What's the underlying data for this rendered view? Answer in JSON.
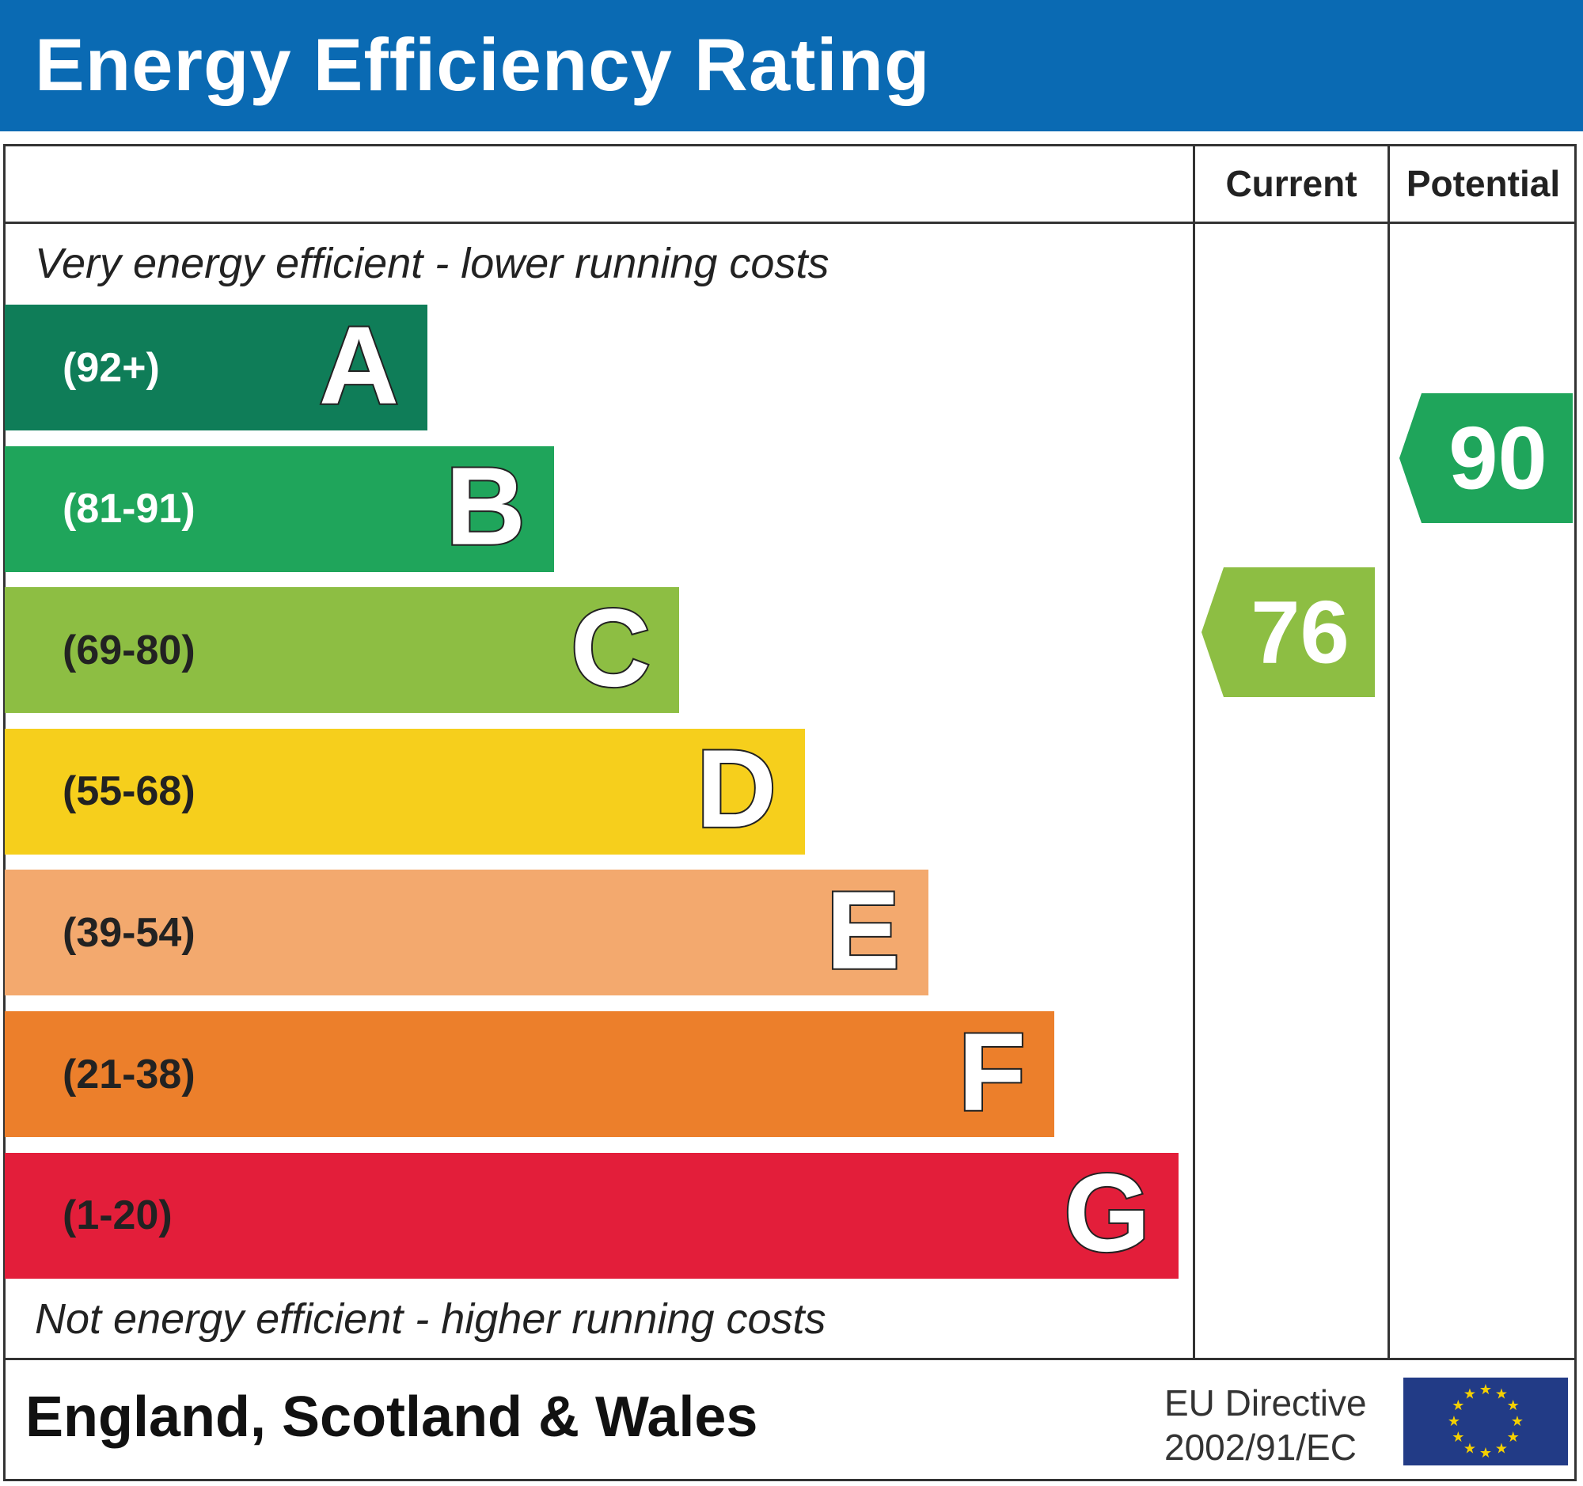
{
  "title": "Energy Efficiency Rating",
  "columns": {
    "current": "Current",
    "potential": "Potential"
  },
  "top_note": "Very energy efficient - lower running costs",
  "bottom_note": "Not energy efficient - higher running costs",
  "bands": [
    {
      "letter": "A",
      "range": "(92+)",
      "color": "#0f7d58",
      "text_color": "#ffffff"
    },
    {
      "letter": "B",
      "range": "(81-91)",
      "color": "#1fa55b",
      "text_color": "#ffffff"
    },
    {
      "letter": "C",
      "range": "(69-80)",
      "color": "#8dbe43",
      "text_color": "#222222"
    },
    {
      "letter": "D",
      "range": "(55-68)",
      "color": "#f6cf1c",
      "text_color": "#222222"
    },
    {
      "letter": "E",
      "range": "(39-54)",
      "color": "#f3a96e",
      "text_color": "#222222"
    },
    {
      "letter": "F",
      "range": "(21-38)",
      "color": "#ec7f2b",
      "text_color": "#222222"
    },
    {
      "letter": "G",
      "range": "(1-20)",
      "color": "#e31e3a",
      "text_color": "#222222"
    }
  ],
  "current": {
    "value": "76",
    "band": "C",
    "color": "#8dbe43"
  },
  "potential": {
    "value": "90",
    "band": "B",
    "color": "#1fa55b"
  },
  "footer": {
    "region": "England, Scotland & Wales",
    "directive_line1": "EU Directive",
    "directive_line2": "2002/91/EC",
    "flag_icon": "eu-flag-icon"
  },
  "colors": {
    "header": "#0a6ab3",
    "flag": "#223b86",
    "stars": "#f5d000"
  }
}
